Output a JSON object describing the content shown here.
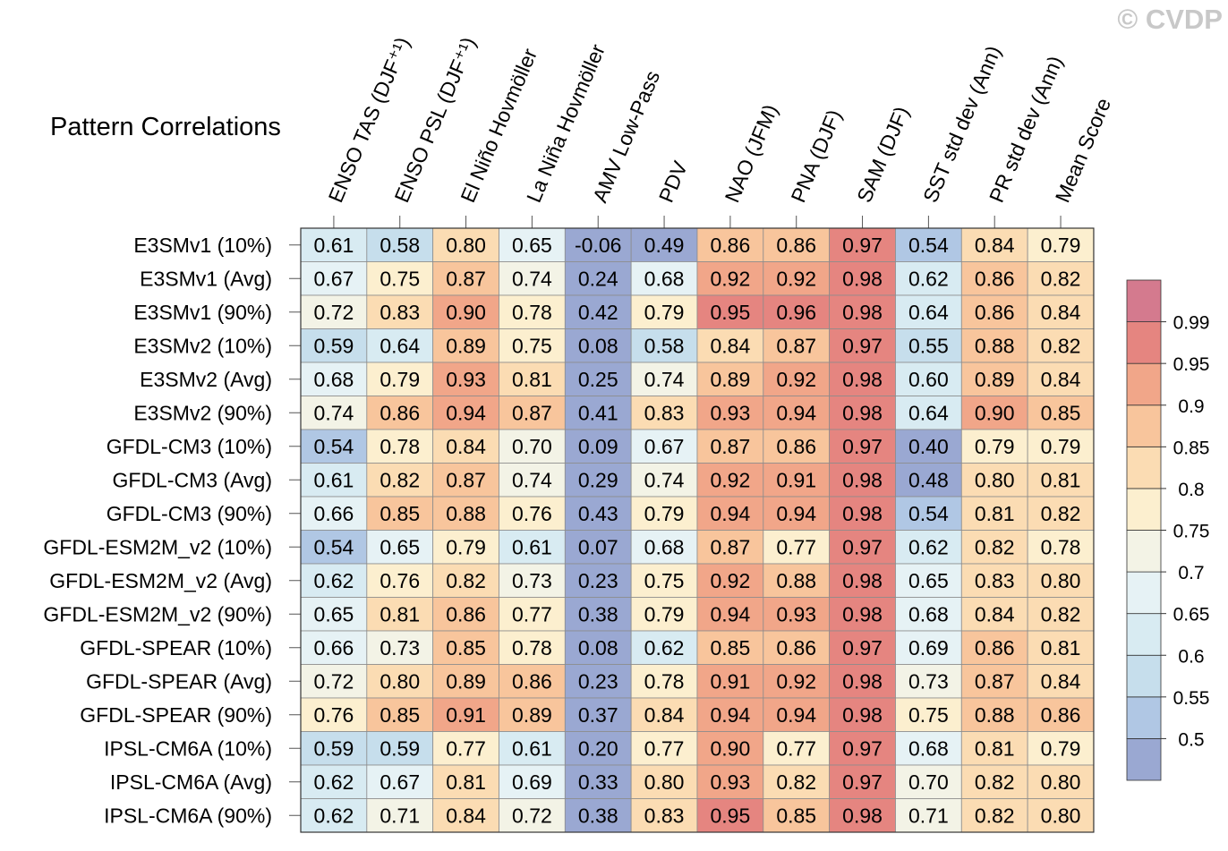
{
  "title": "Pattern Correlations",
  "watermark": "© CVDP",
  "chart_data": {
    "type": "heatmap",
    "columns": [
      "ENSO TAS (DJF⁺¹)",
      "ENSO PSL (DJF⁺¹)",
      "El Niño Hovmöller",
      "La Niña Hovmöller",
      "AMV Low-Pass",
      "PDV",
      "NAO (JFM)",
      "PNA (DJF)",
      "SAM (DJF)",
      "SST std dev (Ann)",
      "PR std dev (Ann)",
      "Mean Score"
    ],
    "rows": [
      "E3SMv1 (10%)",
      "E3SMv1 (Avg)",
      "E3SMv1 (90%)",
      "E3SMv2 (10%)",
      "E3SMv2 (Avg)",
      "E3SMv2 (90%)",
      "GFDL-CM3 (10%)",
      "GFDL-CM3 (Avg)",
      "GFDL-CM3 (90%)",
      "GFDL-ESM2M_v2 (10%)",
      "GFDL-ESM2M_v2 (Avg)",
      "GFDL-ESM2M_v2 (90%)",
      "GFDL-SPEAR (10%)",
      "GFDL-SPEAR (Avg)",
      "GFDL-SPEAR (90%)",
      "IPSL-CM6A (10%)",
      "IPSL-CM6A (Avg)",
      "IPSL-CM6A (90%)"
    ],
    "values": [
      [
        "0.61",
        "0.58",
        "0.80",
        "0.65",
        "-0.06",
        "0.49",
        "0.86",
        "0.86",
        "0.97",
        "0.54",
        "0.84",
        "0.79"
      ],
      [
        "0.67",
        "0.75",
        "0.87",
        "0.74",
        "0.24",
        "0.68",
        "0.92",
        "0.92",
        "0.98",
        "0.62",
        "0.86",
        "0.82"
      ],
      [
        "0.72",
        "0.83",
        "0.90",
        "0.78",
        "0.42",
        "0.79",
        "0.95",
        "0.96",
        "0.98",
        "0.64",
        "0.86",
        "0.84"
      ],
      [
        "0.59",
        "0.64",
        "0.89",
        "0.75",
        "0.08",
        "0.58",
        "0.84",
        "0.87",
        "0.97",
        "0.55",
        "0.88",
        "0.82"
      ],
      [
        "0.68",
        "0.79",
        "0.93",
        "0.81",
        "0.25",
        "0.74",
        "0.89",
        "0.92",
        "0.98",
        "0.60",
        "0.89",
        "0.84"
      ],
      [
        "0.74",
        "0.86",
        "0.94",
        "0.87",
        "0.41",
        "0.83",
        "0.93",
        "0.94",
        "0.98",
        "0.64",
        "0.90",
        "0.85"
      ],
      [
        "0.54",
        "0.78",
        "0.84",
        "0.70",
        "0.09",
        "0.67",
        "0.87",
        "0.86",
        "0.97",
        "0.40",
        "0.79",
        "0.79"
      ],
      [
        "0.61",
        "0.82",
        "0.87",
        "0.74",
        "0.29",
        "0.74",
        "0.92",
        "0.91",
        "0.98",
        "0.48",
        "0.80",
        "0.81"
      ],
      [
        "0.66",
        "0.85",
        "0.88",
        "0.76",
        "0.43",
        "0.79",
        "0.94",
        "0.94",
        "0.98",
        "0.54",
        "0.81",
        "0.82"
      ],
      [
        "0.54",
        "0.65",
        "0.79",
        "0.61",
        "0.07",
        "0.68",
        "0.87",
        "0.77",
        "0.97",
        "0.62",
        "0.82",
        "0.78"
      ],
      [
        "0.62",
        "0.76",
        "0.82",
        "0.73",
        "0.23",
        "0.75",
        "0.92",
        "0.88",
        "0.98",
        "0.65",
        "0.83",
        "0.80"
      ],
      [
        "0.65",
        "0.81",
        "0.86",
        "0.77",
        "0.38",
        "0.79",
        "0.94",
        "0.93",
        "0.98",
        "0.68",
        "0.84",
        "0.82"
      ],
      [
        "0.66",
        "0.73",
        "0.85",
        "0.78",
        "0.08",
        "0.62",
        "0.85",
        "0.86",
        "0.97",
        "0.69",
        "0.86",
        "0.81"
      ],
      [
        "0.72",
        "0.80",
        "0.89",
        "0.86",
        "0.23",
        "0.78",
        "0.91",
        "0.92",
        "0.98",
        "0.73",
        "0.87",
        "0.84"
      ],
      [
        "0.76",
        "0.85",
        "0.91",
        "0.89",
        "0.37",
        "0.84",
        "0.94",
        "0.94",
        "0.98",
        "0.75",
        "0.88",
        "0.86"
      ],
      [
        "0.59",
        "0.59",
        "0.77",
        "0.61",
        "0.20",
        "0.77",
        "0.90",
        "0.77",
        "0.97",
        "0.68",
        "0.81",
        "0.79"
      ],
      [
        "0.62",
        "0.67",
        "0.81",
        "0.69",
        "0.33",
        "0.80",
        "0.93",
        "0.82",
        "0.97",
        "0.70",
        "0.82",
        "0.80"
      ],
      [
        "0.62",
        "0.71",
        "0.84",
        "0.72",
        "0.38",
        "0.83",
        "0.95",
        "0.85",
        "0.98",
        "0.71",
        "0.82",
        "0.80"
      ]
    ],
    "colorbar": {
      "levels": [
        0.5,
        0.55,
        0.6,
        0.65,
        0.7,
        0.75,
        0.8,
        0.85,
        0.9,
        0.95,
        0.99
      ],
      "labels": [
        "0.5",
        "0.55",
        "0.6",
        "0.65",
        "0.7",
        "0.75",
        "0.8",
        "0.85",
        "0.9",
        "0.95",
        "0.99"
      ],
      "colors": [
        "#9aa8d2",
        "#b0c7e4",
        "#c6deec",
        "#d8ebf2",
        "#e6f2f5",
        "#f3f3e6",
        "#fcefcf",
        "#fbdcb3",
        "#f8c59c",
        "#f1a689",
        "#e58580",
        "#d47a8e"
      ]
    }
  }
}
